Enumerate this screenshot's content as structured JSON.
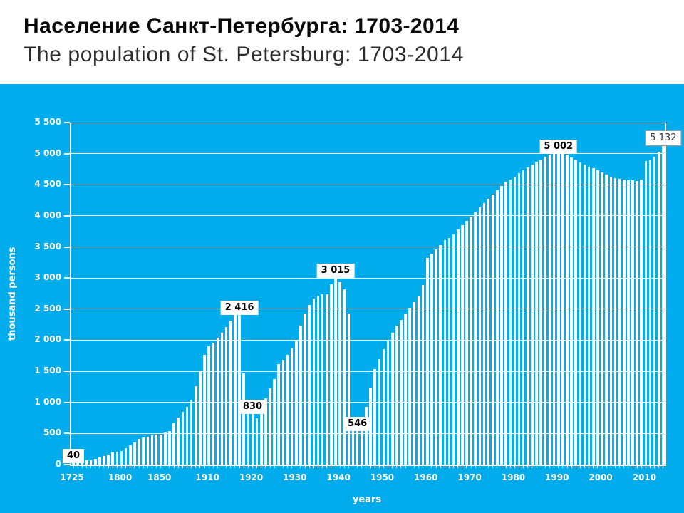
{
  "header": {
    "title_ru": "Население Санкт-Петербурга: 1703-2014",
    "title_en": "The population of St. Petersburg: 1703-2014"
  },
  "chart": {
    "background_color": "#00ACEC",
    "bar_color": "#FFFFFF",
    "text_color": "#FFFFFF",
    "y_axis_title": "thousand persons",
    "x_axis_title": "years",
    "y_tick_labels": [
      "0",
      "500",
      "1 000",
      "1 500",
      "2 000",
      "2 500",
      "3 000",
      "3 500",
      "4 000",
      "4 500",
      "5 000",
      "5 500"
    ],
    "x_ticks": [
      {
        "label": "1725",
        "index": 0
      },
      {
        "label": "1800",
        "index": 11
      },
      {
        "label": "1850",
        "index": 20
      },
      {
        "label": "1910",
        "index": 31
      },
      {
        "label": "1920",
        "index": 41
      },
      {
        "label": "1930",
        "index": 51
      },
      {
        "label": "1940",
        "index": 61
      },
      {
        "label": "1950",
        "index": 71
      },
      {
        "label": "1960",
        "index": 81
      },
      {
        "label": "1970",
        "index": 91
      },
      {
        "label": "1980",
        "index": 101
      },
      {
        "label": "1990",
        "index": 111
      },
      {
        "label": "2000",
        "index": 121
      },
      {
        "label": "2010",
        "index": 131
      }
    ]
  },
  "chart_data": {
    "type": "bar",
    "title": "Население Санкт-Петербурга: 1703-2014 / The population of St. Petersburg: 1703-2014",
    "xlabel": "years",
    "ylabel": "thousand persons",
    "ylim": [
      0,
      5500
    ],
    "y_step": 500,
    "grid": true,
    "x": [
      1725,
      1732,
      1739,
      1746,
      1753,
      1760,
      1767,
      1774,
      1781,
      1788,
      1795,
      1800,
      1806,
      1812,
      1818,
      1824,
      1830,
      1836,
      1842,
      1846,
      1850,
      1856,
      1862,
      1868,
      1874,
      1880,
      1886,
      1891,
      1897,
      1902,
      1906,
      1910,
      1911,
      1912,
      1913,
      1914,
      1915,
      1916,
      1917,
      1918,
      1919,
      1920,
      1921,
      1922,
      1923,
      1924,
      1925,
      1926,
      1927,
      1928,
      1929,
      1930,
      1931,
      1932,
      1933,
      1934,
      1935,
      1936,
      1937,
      1938,
      1939,
      1940,
      1941,
      1942,
      1943,
      1944,
      1945,
      1946,
      1947,
      1948,
      1949,
      1950,
      1951,
      1952,
      1953,
      1954,
      1955,
      1956,
      1957,
      1958,
      1959,
      1960,
      1961,
      1962,
      1963,
      1964,
      1965,
      1966,
      1967,
      1968,
      1969,
      1970,
      1971,
      1972,
      1973,
      1974,
      1975,
      1976,
      1977,
      1978,
      1979,
      1980,
      1981,
      1982,
      1983,
      1984,
      1985,
      1986,
      1987,
      1988,
      1989,
      1990,
      1991,
      1992,
      1993,
      1994,
      1995,
      1996,
      1997,
      1998,
      1999,
      2000,
      2001,
      2002,
      2003,
      2004,
      2005,
      2006,
      2007,
      2008,
      2009,
      2010,
      2011,
      2012,
      2013,
      2014
    ],
    "values": [
      40,
      52,
      58,
      68,
      74,
      90,
      110,
      140,
      166,
      192,
      210,
      220,
      260,
      308,
      355,
      410,
      435,
      452,
      470,
      480,
      487,
      513,
      540,
      667,
      760,
      843,
      928,
      1035,
      1265,
      1518,
      1760,
      1905,
      1962,
      2036,
      2124,
      2217,
      2314,
      2415,
      2416,
      1469,
      900,
      830,
      740,
      960,
      1071,
      1221,
      1379,
      1616,
      1682,
      1766,
      1865,
      2009,
      2236,
      2432,
      2570,
      2666,
      2716,
      2739,
      2742,
      2896,
      3015,
      2930,
      2817,
      2432,
      622,
      546,
      560,
      927,
      1240,
      1541,
      1691,
      1855,
      2000,
      2120,
      2230,
      2327,
      2430,
      2520,
      2615,
      2700,
      2888,
      3321,
      3390,
      3462,
      3535,
      3610,
      3641,
      3706,
      3780,
      3850,
      3920,
      3987,
      4057,
      4131,
      4204,
      4276,
      4348,
      4417,
      4486,
      4553,
      4588,
      4635,
      4681,
      4729,
      4779,
      4827,
      4867,
      4904,
      4948,
      4980,
      5002,
      5002,
      5002,
      4985,
      4942,
      4899,
      4859,
      4820,
      4792,
      4764,
      4728,
      4694,
      4661,
      4629,
      4612,
      4600,
      4581,
      4571,
      4568,
      4564,
      4582,
      4880,
      4899,
      4953,
      5028,
      5132
    ],
    "annotations": [
      {
        "index": 0,
        "text": "40",
        "variant": "bold"
      },
      {
        "index": 38,
        "text": "2 416",
        "variant": "bold"
      },
      {
        "index": 41,
        "text": "830",
        "variant": "bold"
      },
      {
        "index": 60,
        "text": "3 015",
        "variant": "bold"
      },
      {
        "index": 65,
        "text": "546",
        "variant": "bold"
      },
      {
        "index": 111,
        "text": "5 002",
        "variant": "bold"
      },
      {
        "index": 135,
        "text": "5 132",
        "variant": "outlined"
      }
    ],
    "legend": null
  }
}
